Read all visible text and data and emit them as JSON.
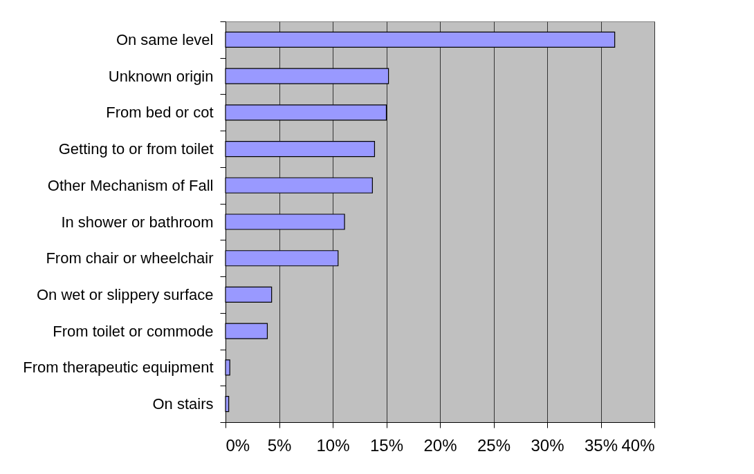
{
  "chart_data": {
    "type": "bar",
    "orientation": "horizontal",
    "categories": [
      "On same level",
      "Unknown origin",
      "From bed or cot",
      "Getting to or from toilet",
      "Other Mechanism of Fall",
      "In shower or bathroom",
      "From chair or wheelchair",
      "On wet or slippery surface",
      "From toilet or commode",
      "From therapeutic equipment",
      "On stairs"
    ],
    "values": [
      36.3,
      15.2,
      15.0,
      13.9,
      13.7,
      11.1,
      10.5,
      4.3,
      3.9,
      0.4,
      0.3
    ],
    "color": "#9999ff",
    "xlim": [
      0,
      40
    ],
    "xticks": [
      {
        "value": 0,
        "label": "0%"
      },
      {
        "value": 5,
        "label": "5%"
      },
      {
        "value": 10,
        "label": "10%"
      },
      {
        "value": 15,
        "label": "15%"
      },
      {
        "value": 20,
        "label": "20%"
      },
      {
        "value": 25,
        "label": "25%"
      },
      {
        "value": 30,
        "label": "30%"
      },
      {
        "value": 35,
        "label": "35%"
      },
      {
        "value": 40,
        "label": "40%"
      }
    ],
    "grid": "x"
  }
}
